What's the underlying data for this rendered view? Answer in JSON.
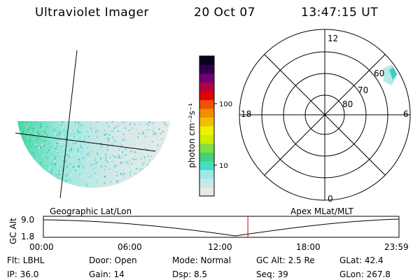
{
  "header": {
    "title": "Ultraviolet Imager",
    "date": "20 Oct 07",
    "time": "13:47:15 UT"
  },
  "colorbar": {
    "label": "photon cm⁻²s⁻¹",
    "ticks": [
      "100",
      "10"
    ]
  },
  "polar": {
    "ring_labels": [
      "80",
      "70",
      "60"
    ],
    "mlt_labels": {
      "top": "12",
      "right": "6",
      "bottom": "0",
      "left": "18"
    }
  },
  "map_captions": {
    "left": "Geographic Lat/Lon",
    "right": "Apex MLat/MLT"
  },
  "timeline": {
    "ylabel": "GC Alt",
    "yticks": [
      "9.0",
      "1.8"
    ],
    "xticks": [
      "00:00",
      "06:00",
      "12:00",
      "18:00",
      "23:59"
    ],
    "marker_fraction": 0.575
  },
  "info": {
    "filter": "Flt: LBHL",
    "door": "Door: Open",
    "mode": "Mode: Normal",
    "gc_alt": "GC Alt: 2.5 Re",
    "glat": "GLat:  42.4",
    "ip": "IP: 36.0",
    "gain": "Gain: 14",
    "dsp": "Dsp:     8.5",
    "seq": "Seq: 39",
    "glon": "GLon: 267.8"
  },
  "colors": {
    "marker": "#cc0000",
    "palette": [
      "#e8e8e8",
      "#c8e8e8",
      "#a0e8e8",
      "#40e0c0",
      "#40d080",
      "#80e040",
      "#c8f000",
      "#f0f000",
      "#f0c000",
      "#f09000",
      "#f05000",
      "#e00000",
      "#b00040",
      "#700070",
      "#300050",
      "#100020"
    ]
  }
}
